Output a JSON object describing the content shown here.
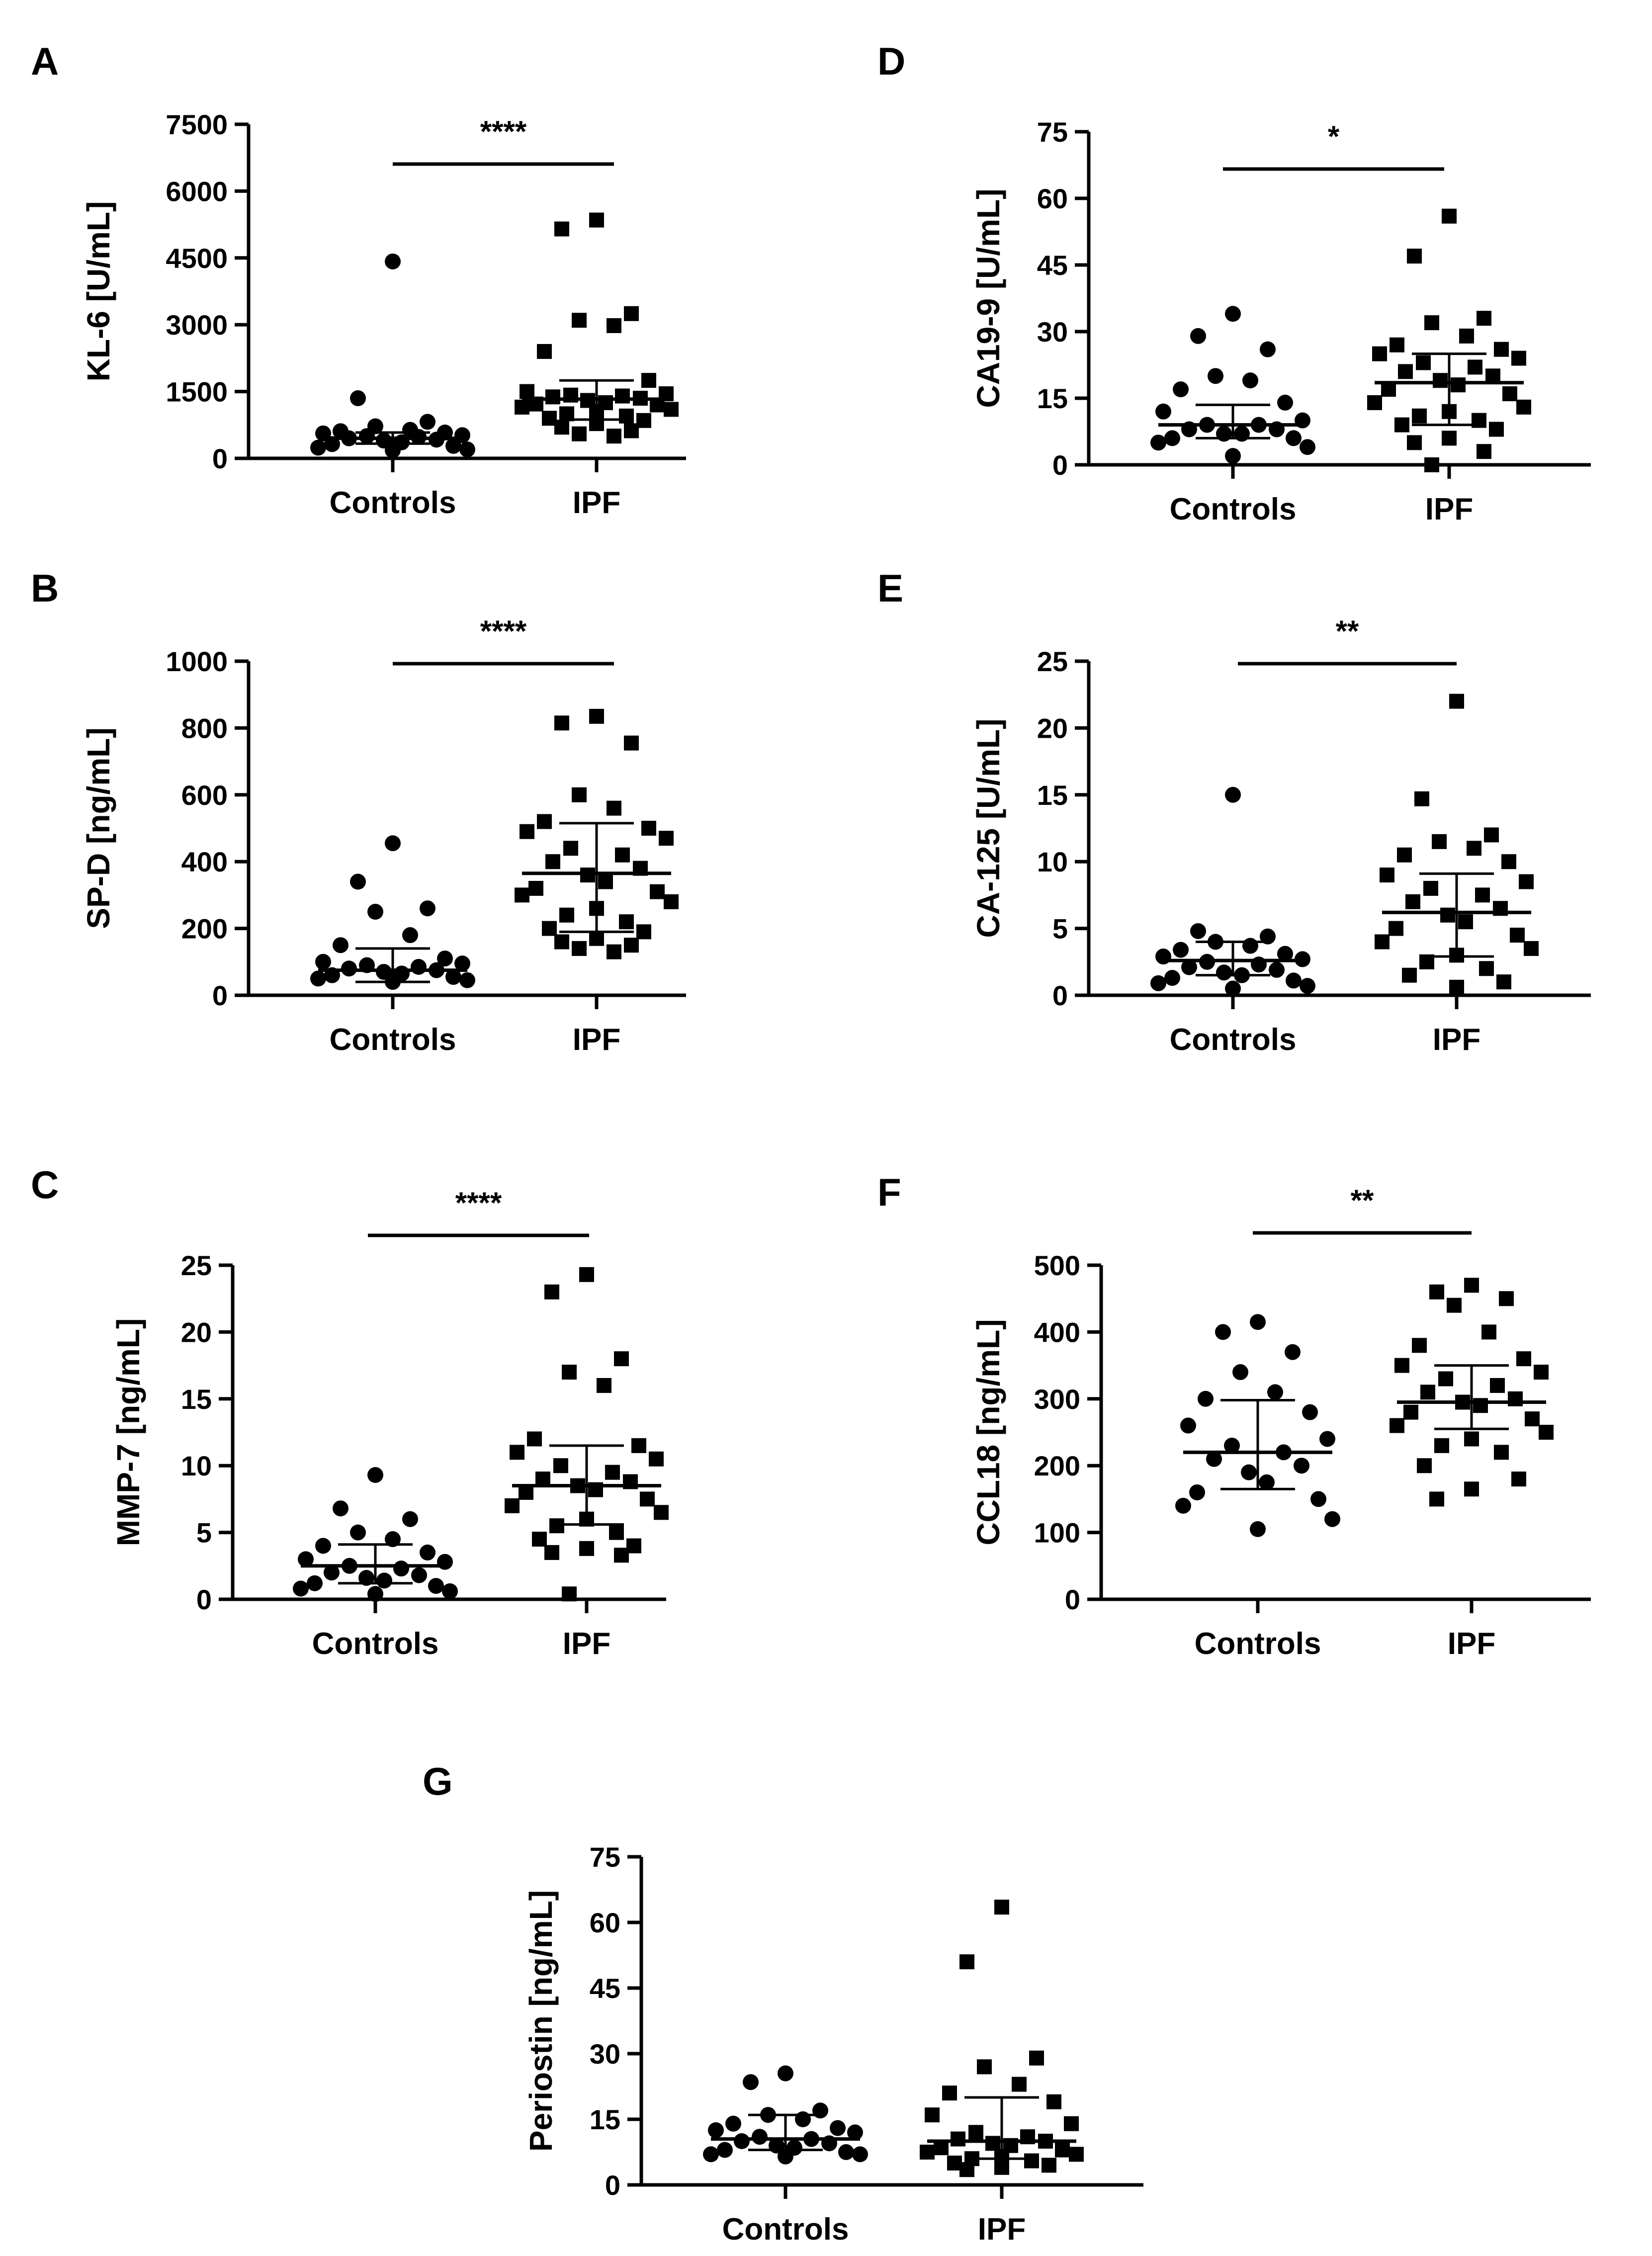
{
  "figure": {
    "background": "#ffffff",
    "ink": "#000000"
  },
  "chart_data": [
    {
      "id": "A",
      "panel_label": "A",
      "type": "scatter",
      "ylabel": "KL-6 [U/mL]",
      "ylim": [
        0,
        7500
      ],
      "yticks": [
        "0",
        "1500",
        "3000",
        "4500",
        "6000",
        "7500"
      ],
      "categories": [
        "Controls",
        "IPF"
      ],
      "significance": "****",
      "groups": [
        {
          "name": "Controls",
          "marker": "circle",
          "mean": 450,
          "sd_low": 330,
          "sd_high": 580,
          "values": [
            4420,
            1350,
            820,
            720,
            640,
            610,
            580,
            560,
            520,
            500,
            480,
            450,
            420,
            400,
            360,
            320,
            280,
            240,
            200,
            180
          ]
        },
        {
          "name": "IPF",
          "marker": "square",
          "mean": 1330,
          "sd_low": 870,
          "sd_high": 1750,
          "values": [
            5350,
            5150,
            3250,
            3100,
            2980,
            2400,
            1750,
            1500,
            1450,
            1420,
            1400,
            1380,
            1350,
            1300,
            1250,
            1220,
            1200,
            1150,
            1100,
            1050,
            1000,
            950,
            900,
            850,
            780,
            700,
            620,
            550,
            500
          ]
        }
      ]
    },
    {
      "id": "B",
      "panel_label": "B",
      "type": "scatter",
      "ylabel": "SP-D [ng/mL]",
      "ylim": [
        0,
        1000
      ],
      "yticks": [
        "0",
        "200",
        "400",
        "600",
        "800",
        "1000"
      ],
      "categories": [
        "Controls",
        "IPF"
      ],
      "significance": "****",
      "groups": [
        {
          "name": "Controls",
          "marker": "circle",
          "mean": 75,
          "sd_low": 40,
          "sd_high": 140,
          "values": [
            455,
            340,
            260,
            250,
            180,
            150,
            110,
            100,
            95,
            90,
            85,
            80,
            75,
            70,
            65,
            60,
            55,
            50,
            45,
            40
          ]
        },
        {
          "name": "IPF",
          "marker": "square",
          "mean": 365,
          "sd_low": 190,
          "sd_high": 515,
          "values": [
            835,
            815,
            755,
            600,
            560,
            520,
            500,
            490,
            470,
            440,
            420,
            400,
            380,
            360,
            340,
            320,
            310,
            300,
            280,
            260,
            240,
            220,
            200,
            190,
            170,
            160,
            150,
            140,
            130
          ]
        }
      ]
    },
    {
      "id": "C",
      "panel_label": "C",
      "type": "scatter",
      "ylabel": "MMP-7 [ng/mL]",
      "ylim": [
        0,
        25
      ],
      "yticks": [
        "0",
        "5",
        "10",
        "15",
        "20",
        "25"
      ],
      "categories": [
        "Controls",
        "IPF"
      ],
      "significance": "****",
      "groups": [
        {
          "name": "Controls",
          "marker": "circle",
          "mean": 2.5,
          "sd_low": 1.2,
          "sd_high": 4.1,
          "values": [
            9.3,
            6.8,
            6.0,
            5.0,
            4.5,
            4.0,
            3.5,
            3.0,
            2.8,
            2.5,
            2.3,
            2.0,
            1.8,
            1.6,
            1.4,
            1.2,
            1.0,
            0.8,
            0.6,
            0.4
          ]
        },
        {
          "name": "IPF",
          "marker": "square",
          "mean": 8.5,
          "sd_low": 5.6,
          "sd_high": 11.5,
          "values": [
            24.3,
            23.0,
            18.0,
            17.0,
            16.0,
            12.0,
            11.5,
            11.0,
            10.5,
            10.0,
            9.5,
            9.0,
            8.8,
            8.5,
            8.2,
            8.0,
            7.5,
            7.0,
            6.5,
            6.0,
            5.5,
            5.0,
            4.5,
            4.0,
            3.8,
            3.5,
            3.3,
            0.4
          ]
        }
      ]
    },
    {
      "id": "D",
      "panel_label": "D",
      "type": "scatter",
      "ylabel": "CA19-9 [U/mL]",
      "ylim": [
        0,
        75
      ],
      "yticks": [
        "0",
        "15",
        "30",
        "45",
        "60",
        "75"
      ],
      "categories": [
        "Controls",
        "IPF"
      ],
      "significance": "*",
      "groups": [
        {
          "name": "Controls",
          "marker": "circle",
          "mean": 9,
          "sd_low": 6,
          "sd_high": 13.5,
          "values": [
            34,
            29,
            26,
            20,
            19,
            17,
            14,
            12,
            10,
            9,
            9,
            8,
            8,
            7,
            7,
            6,
            6,
            5,
            4,
            2
          ]
        },
        {
          "name": "IPF",
          "marker": "square",
          "mean": 18.5,
          "sd_low": 9,
          "sd_high": 25,
          "values": [
            56,
            47,
            33,
            32,
            29,
            27,
            26,
            25,
            24,
            23,
            22,
            21,
            20,
            19,
            18,
            17,
            16,
            14,
            13,
            12,
            11,
            10,
            9,
            8,
            6,
            5,
            3,
            0
          ]
        }
      ]
    },
    {
      "id": "E",
      "panel_label": "E",
      "type": "scatter",
      "ylabel": "CA-125 [U/mL]",
      "ylim": [
        0,
        25
      ],
      "yticks": [
        "0",
        "5",
        "10",
        "15",
        "20",
        "25"
      ],
      "categories": [
        "Controls",
        "IPF"
      ],
      "significance": "**",
      "groups": [
        {
          "name": "Controls",
          "marker": "circle",
          "mean": 2.6,
          "sd_low": 1.5,
          "sd_high": 4.0,
          "values": [
            15.0,
            4.8,
            4.4,
            4.0,
            3.7,
            3.4,
            3.1,
            2.9,
            2.7,
            2.5,
            2.3,
            2.1,
            1.9,
            1.7,
            1.5,
            1.3,
            1.1,
            0.9,
            0.7,
            0.5
          ]
        },
        {
          "name": "IPF",
          "marker": "square",
          "mean": 6.2,
          "sd_low": 2.9,
          "sd_high": 9.1,
          "values": [
            22.0,
            14.7,
            12.0,
            11.5,
            11.0,
            10.5,
            10.0,
            9.0,
            8.5,
            8.0,
            7.5,
            7.0,
            6.5,
            6.0,
            5.5,
            5.0,
            4.5,
            4.0,
            3.5,
            3.0,
            2.5,
            2.0,
            1.5,
            1.0,
            0.6
          ]
        }
      ]
    },
    {
      "id": "F",
      "panel_label": "F",
      "type": "scatter",
      "ylabel": "CCL18 [ng/mL]",
      "ylim": [
        0,
        500
      ],
      "yticks": [
        "0",
        "100",
        "200",
        "300",
        "400",
        "500"
      ],
      "categories": [
        "Controls",
        "IPF"
      ],
      "significance": "**",
      "groups": [
        {
          "name": "Controls",
          "marker": "circle",
          "mean": 220,
          "sd_low": 165,
          "sd_high": 298,
          "values": [
            415,
            400,
            370,
            340,
            310,
            300,
            280,
            260,
            240,
            230,
            220,
            210,
            200,
            190,
            175,
            160,
            150,
            140,
            120,
            105
          ]
        },
        {
          "name": "IPF",
          "marker": "square",
          "mean": 295,
          "sd_low": 255,
          "sd_high": 350,
          "values": [
            470,
            460,
            450,
            440,
            400,
            380,
            360,
            350,
            340,
            330,
            320,
            310,
            300,
            295,
            290,
            280,
            270,
            260,
            250,
            240,
            230,
            220,
            200,
            180,
            165,
            150
          ]
        }
      ]
    },
    {
      "id": "G",
      "panel_label": "G",
      "type": "scatter",
      "ylabel": "Periostin [ng/mL]",
      "ylim": [
        0,
        75
      ],
      "yticks": [
        "0",
        "15",
        "30",
        "45",
        "60",
        "75"
      ],
      "categories": [
        "Controls",
        "IPF"
      ],
      "significance": "",
      "groups": [
        {
          "name": "Controls",
          "marker": "circle",
          "mean": 10.5,
          "sd_low": 8,
          "sd_high": 16,
          "values": [
            25.5,
            23.5,
            17,
            16,
            15,
            14,
            13,
            12.5,
            12,
            11,
            10.5,
            10,
            9.5,
            9,
            8.5,
            8,
            7.5,
            7,
            7,
            6.5
          ]
        },
        {
          "name": "IPF",
          "marker": "square",
          "mean": 10,
          "sd_low": 6,
          "sd_high": 20,
          "values": [
            63.5,
            51,
            29,
            27,
            23,
            21,
            19,
            16,
            14,
            12,
            11,
            10.5,
            10,
            9.5,
            9,
            8.5,
            8,
            7.5,
            7,
            6.5,
            6,
            5.5,
            5,
            4.5,
            4,
            3.5
          ]
        }
      ]
    }
  ]
}
